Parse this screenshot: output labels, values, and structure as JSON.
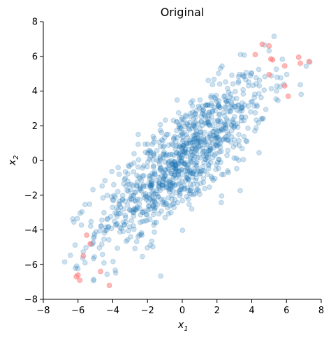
{
  "chart_data": {
    "type": "scatter",
    "title": "Original",
    "xlabel": "x",
    "xlabel_sub": "1",
    "ylabel": "x",
    "ylabel_sub": "2",
    "xlim": [
      -8,
      8
    ],
    "ylim": [
      -8,
      8
    ],
    "xticks": [
      -8,
      -6,
      -4,
      -2,
      0,
      2,
      4,
      6,
      8
    ],
    "yticks": [
      -8,
      -6,
      -4,
      -2,
      0,
      2,
      4,
      6,
      8
    ],
    "xtick_labels": [
      "−8",
      "−6",
      "−4",
      "−2",
      "0",
      "2",
      "4",
      "6",
      "8"
    ],
    "ytick_labels": [
      "−8",
      "−6",
      "−4",
      "−2",
      "0",
      "2",
      "4",
      "6",
      "8"
    ],
    "grid": false,
    "legend": "none",
    "colors": {
      "inlier": "#1f77b4",
      "outlier": "#ff7f7f"
    },
    "point_alpha": 0.22,
    "point_radius": 3.4,
    "series": [
      {
        "role": "inliers",
        "distribution": {
          "mean": [
            0,
            0
          ],
          "var_x": 6.0,
          "var_y": 6.0,
          "covariance": 4.8,
          "count": 1000
        }
      },
      {
        "role": "outliers",
        "x": [
          4.6,
          5.0,
          4.2,
          5.1,
          5.2,
          5.0,
          6.7,
          7.3,
          6.8,
          5.9,
          5.9,
          6.1,
          -6.0,
          -5.9,
          -6.1,
          -5.7,
          -5.3,
          -5.5,
          -4.7,
          -4.2
        ],
        "y": [
          6.7,
          6.6,
          6.1,
          5.85,
          5.8,
          4.95,
          5.95,
          5.7,
          5.6,
          5.45,
          4.3,
          3.7,
          -6.6,
          -6.9,
          -6.7,
          -5.5,
          -4.8,
          -4.3,
          -6.4,
          -7.2
        ]
      }
    ]
  }
}
